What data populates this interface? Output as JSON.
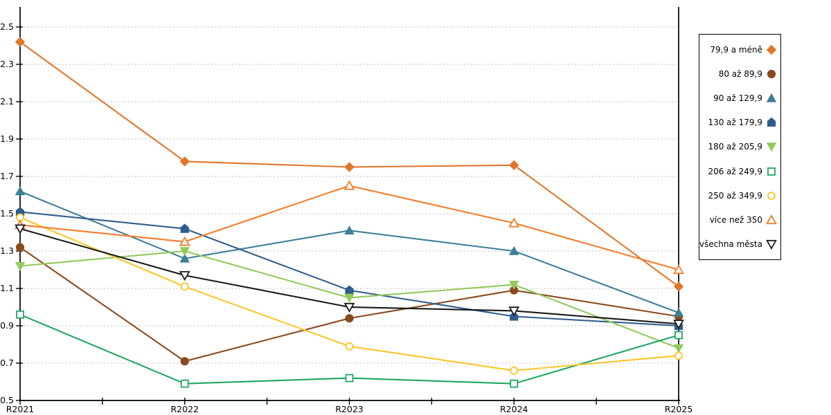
{
  "chart_data": {
    "type": "line",
    "title": "",
    "xlabel": "",
    "ylabel": "",
    "categories": [
      "R2021",
      "R2022",
      "R2023",
      "R2024",
      "R2025"
    ],
    "series": [
      {
        "name": "79,9 a méně",
        "color": "#E0762B",
        "marker": "diamond",
        "marker_fill": "filled",
        "values": [
          2.42,
          1.78,
          1.75,
          1.76,
          1.11
        ]
      },
      {
        "name": "80 až 89,9",
        "color": "#8B4A1C",
        "marker": "circle",
        "marker_fill": "filled",
        "values": [
          1.32,
          0.71,
          0.94,
          1.09,
          0.95
        ]
      },
      {
        "name": "90 až 129,9",
        "color": "#3D7F97",
        "marker": "triangle-up",
        "marker_fill": "filled",
        "values": [
          1.62,
          1.26,
          1.41,
          1.3,
          0.97
        ]
      },
      {
        "name": "130 až 179,9",
        "color": "#2F5E8E",
        "marker": "pentagon",
        "marker_fill": "filled",
        "values": [
          1.51,
          1.42,
          1.09,
          0.95,
          0.9
        ]
      },
      {
        "name": "180 až 205,9",
        "color": "#92C95A",
        "marker": "triangle-down",
        "marker_fill": "filled",
        "values": [
          1.22,
          1.3,
          1.05,
          1.12,
          0.78
        ]
      },
      {
        "name": "206 až 249,9",
        "color": "#1EA761",
        "marker": "square",
        "marker_fill": "open",
        "values": [
          0.96,
          0.59,
          0.62,
          0.59,
          0.85
        ]
      },
      {
        "name": "250 až 349,9",
        "color": "#FFC423",
        "marker": "circle",
        "marker_fill": "open",
        "values": [
          1.48,
          1.11,
          0.79,
          0.66,
          0.74
        ]
      },
      {
        "name": "více než 350",
        "color": "#F57C28",
        "marker": "triangle-up",
        "marker_fill": "open",
        "values": [
          1.44,
          1.35,
          1.65,
          1.45,
          1.2
        ]
      },
      {
        "name": "všechna města",
        "color": "#1A1A1A",
        "marker": "triangle-down",
        "marker_fill": "open",
        "values": [
          1.42,
          1.17,
          1.0,
          0.98,
          0.91
        ]
      }
    ],
    "ylim": [
      0.5,
      2.6
    ],
    "y_ticks": [
      0.5,
      0.7,
      0.9,
      1.1,
      1.3,
      1.5,
      1.7,
      1.9,
      2.1,
      2.3,
      2.5
    ],
    "y_tick_labels": [
      "0.5",
      "0.7",
      "0.9",
      "1.1",
      "1.3",
      "1.5",
      "1.7",
      "1.9",
      "2.1",
      "2.3",
      "2.5"
    ],
    "grid": "horizontal-dotted",
    "grid_color": "#BDBDBD",
    "axis_color": "#000000",
    "legend_position": "right"
  }
}
